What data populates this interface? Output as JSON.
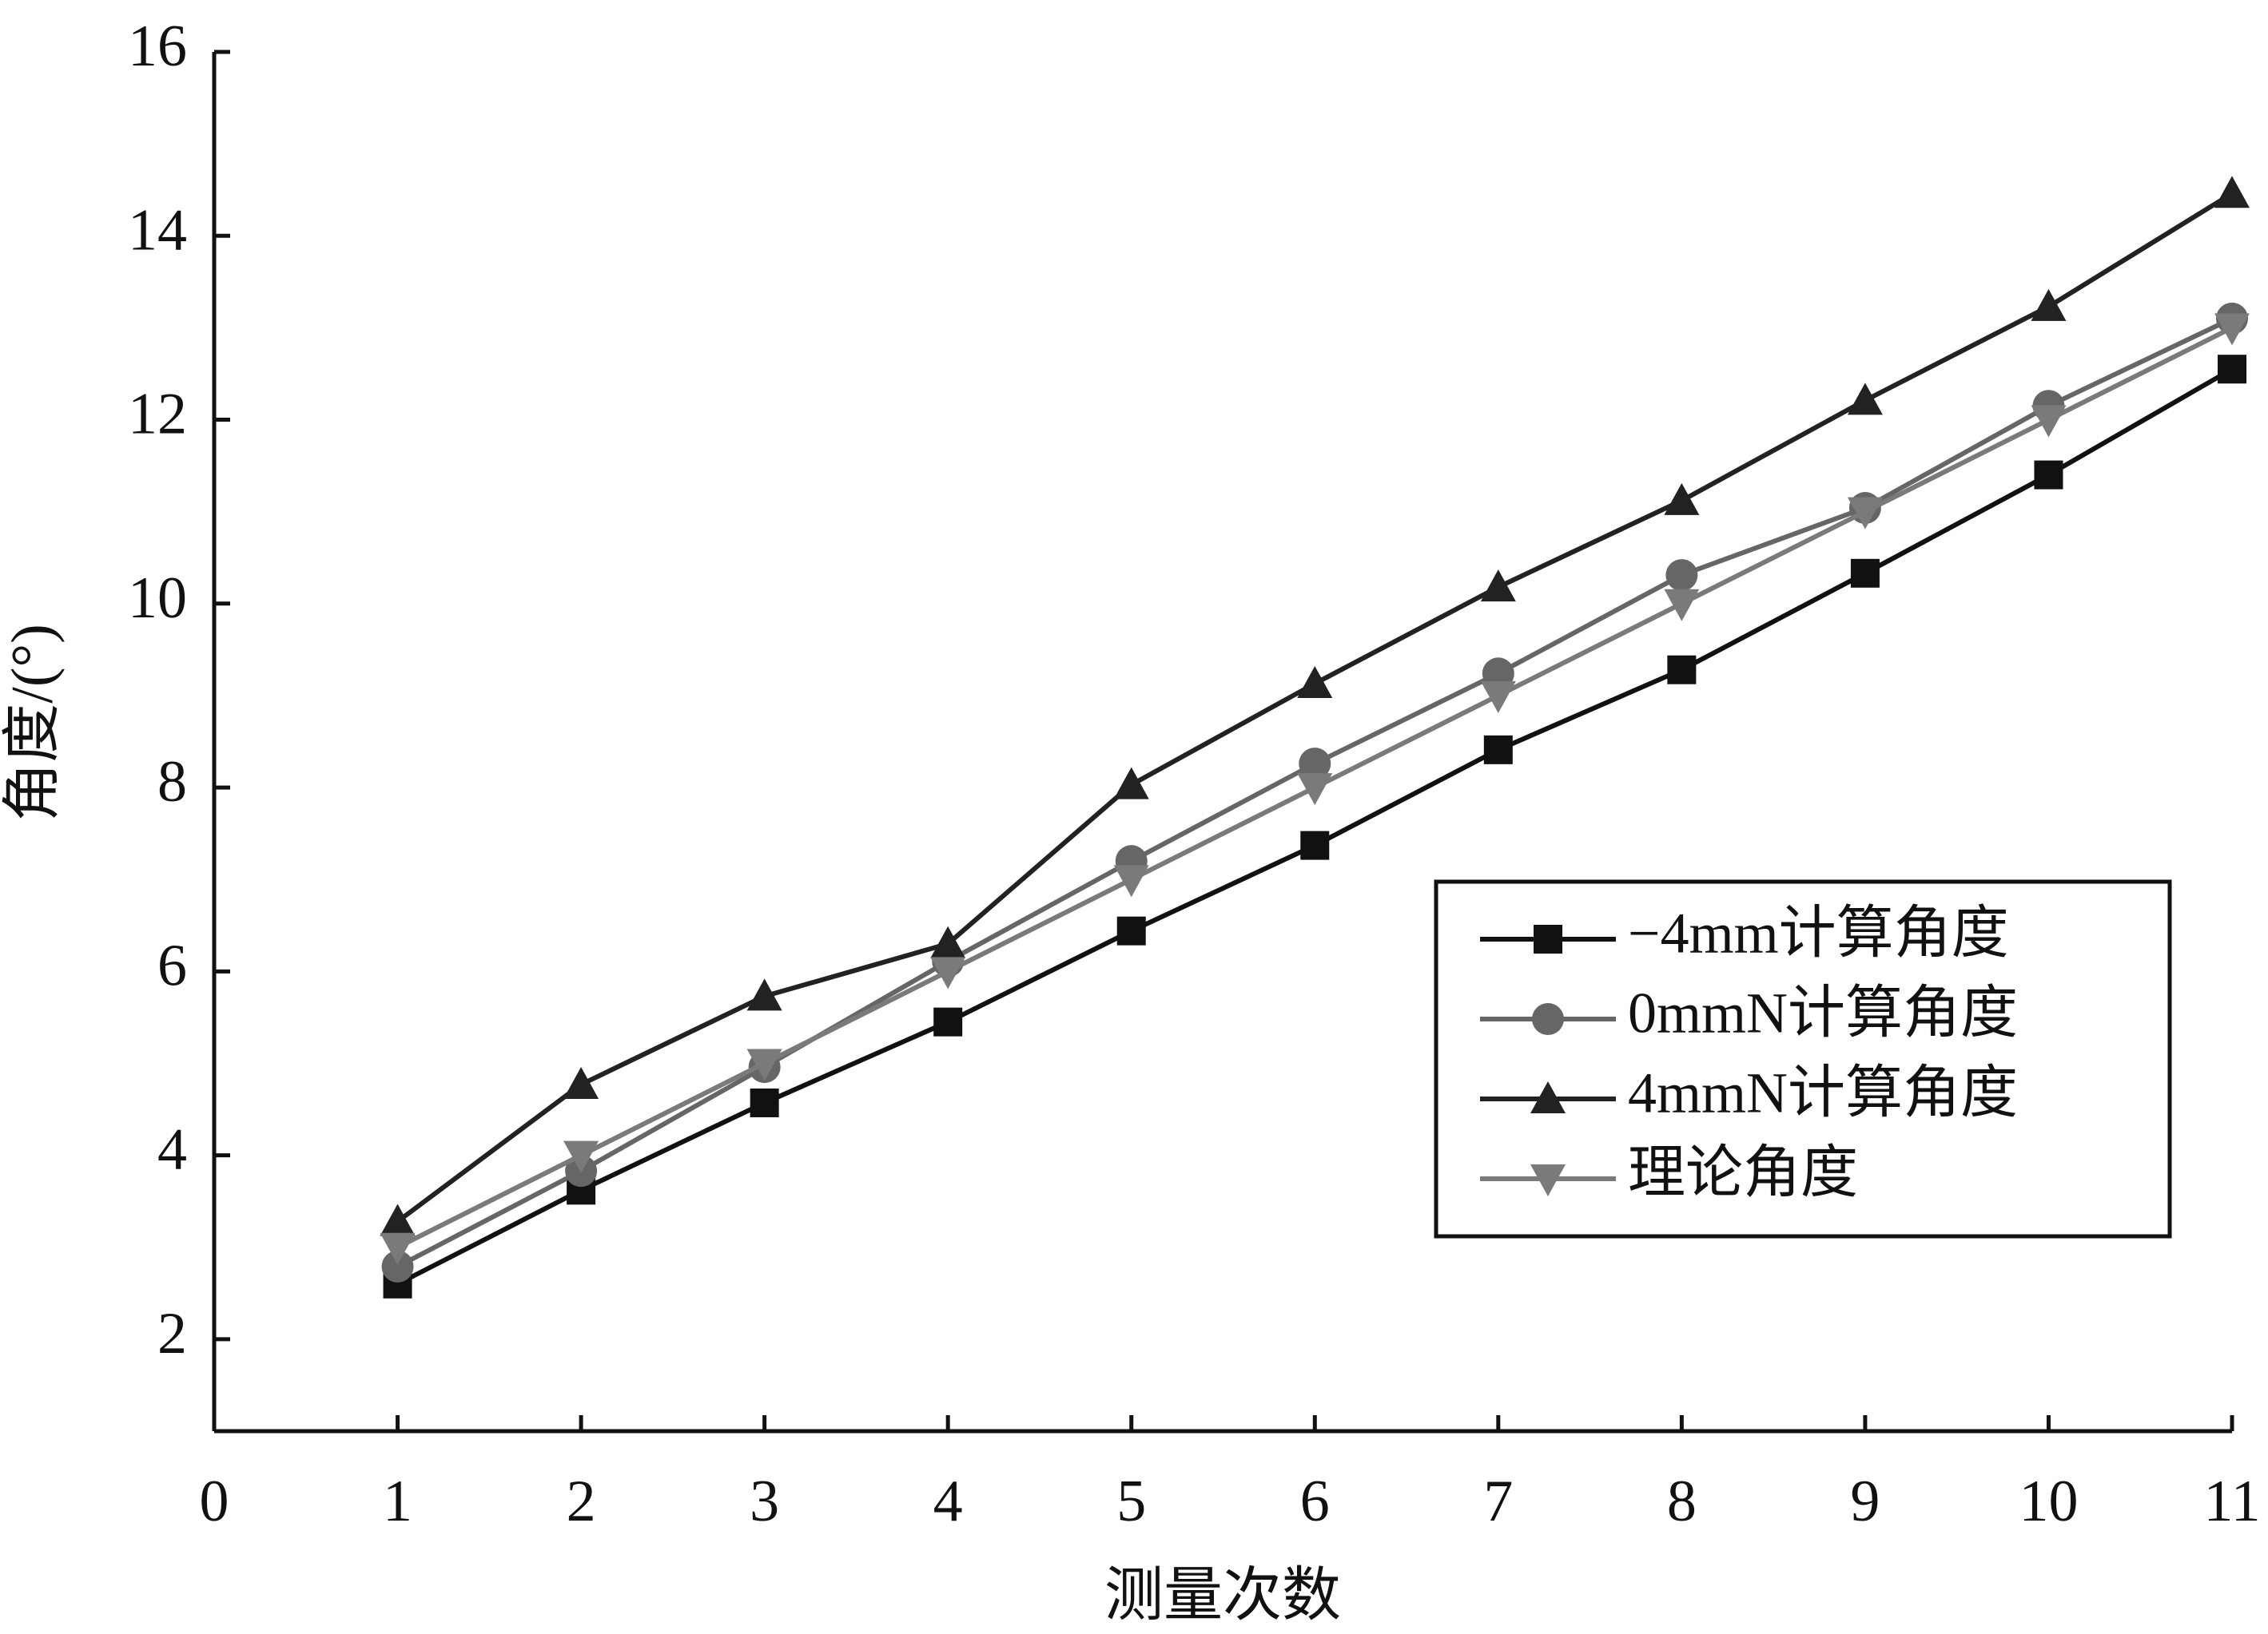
{
  "chart_data": {
    "type": "line",
    "x_label": "测量次数",
    "y_label": "角度/(°)",
    "x": [
      1,
      2,
      3,
      4,
      5,
      6,
      7,
      8,
      9,
      10,
      11
    ],
    "xlim": [
      0,
      11
    ],
    "xticks": [
      0,
      1,
      2,
      3,
      4,
      5,
      6,
      7,
      8,
      9,
      10,
      11
    ],
    "ylim": [
      1,
      16
    ],
    "yticks": [
      2,
      4,
      6,
      8,
      10,
      12,
      14,
      16
    ],
    "grid": false,
    "legend": "right",
    "series": [
      {
        "name": "−4mm计算角度",
        "color": "#111111",
        "marker": "square",
        "values": [
          2.6,
          3.62,
          4.57,
          5.45,
          6.44,
          7.37,
          8.41,
          9.28,
          10.33,
          11.4,
          12.55
        ]
      },
      {
        "name": "0mmN计算角度",
        "color": "#666666",
        "marker": "circle",
        "values": [
          2.79,
          3.83,
          4.96,
          6.11,
          7.2,
          8.26,
          9.24,
          10.31,
          11.04,
          12.15,
          13.1
        ]
      },
      {
        "name": "4mmN计算角度",
        "color": "#222222",
        "marker": "triangle",
        "values": [
          3.28,
          4.77,
          5.73,
          6.3,
          8.03,
          9.13,
          10.18,
          11.12,
          12.21,
          13.23,
          14.46
        ]
      },
      {
        "name": "理论角度",
        "color": "#7a7a7a",
        "marker": "triangle-down",
        "values": [
          3,
          4,
          5,
          6,
          7,
          8,
          9,
          10,
          11,
          12,
          13
        ]
      }
    ]
  }
}
